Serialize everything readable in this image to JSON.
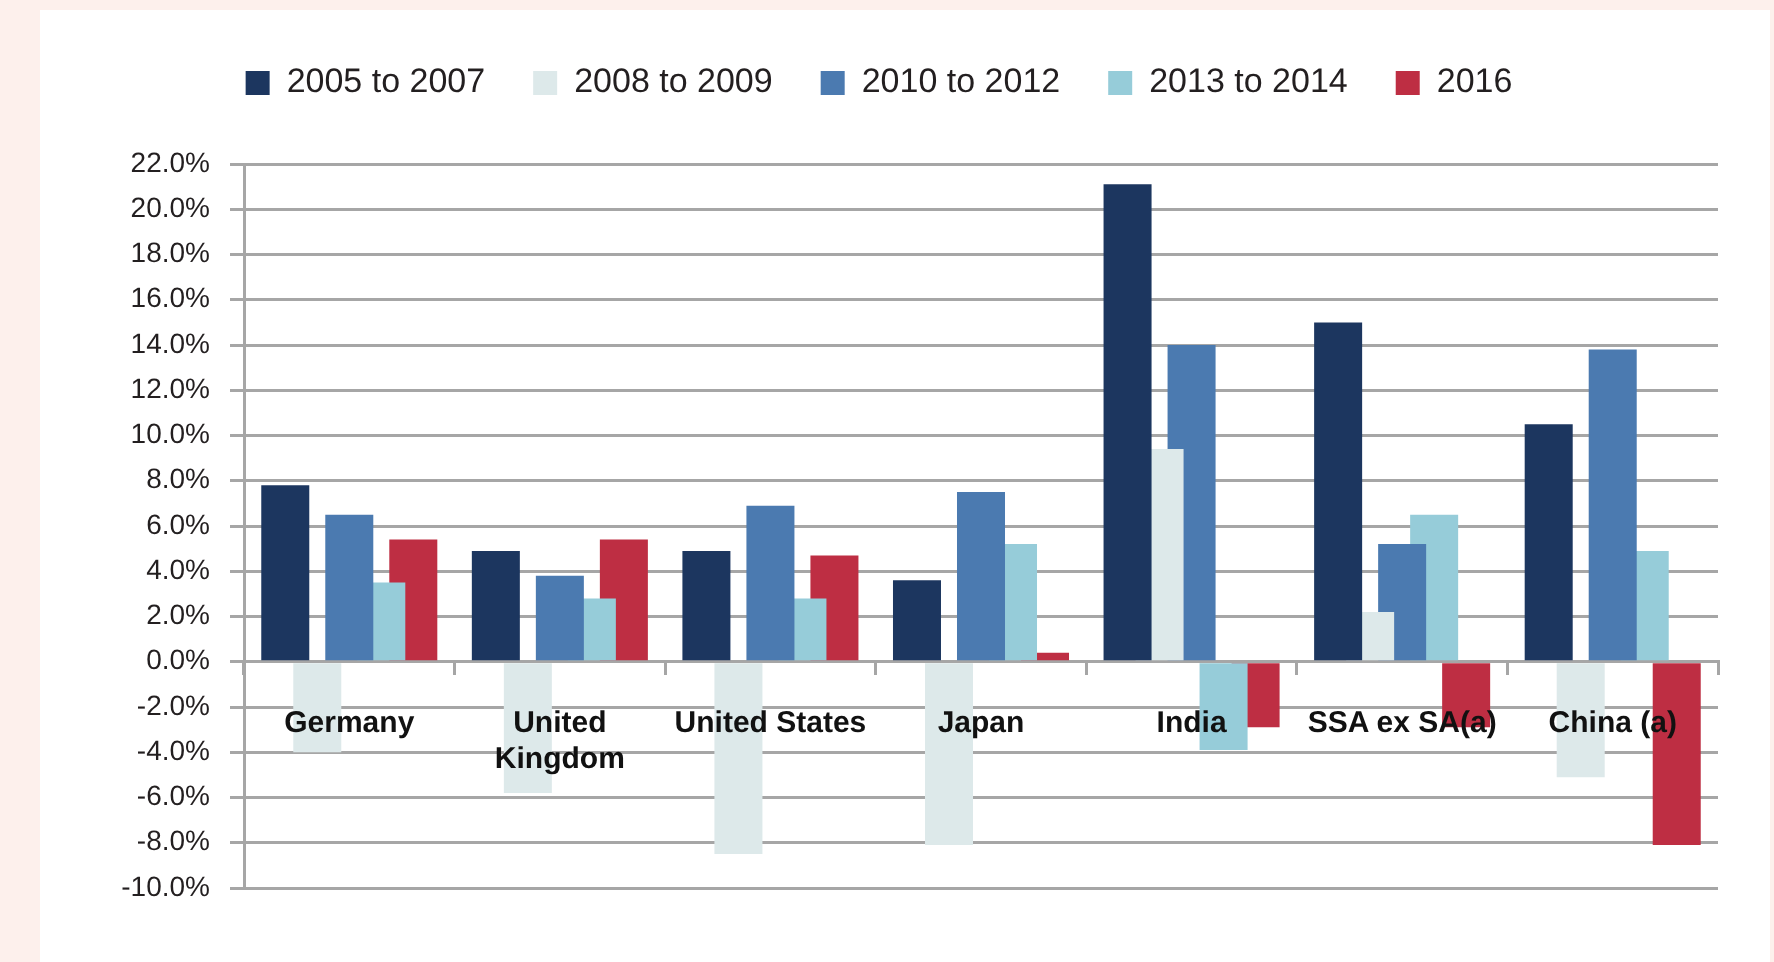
{
  "chart_data": {
    "type": "bar",
    "categories": [
      "Germany",
      "United Kingdom",
      "United States",
      "Japan",
      "India",
      "SSA ex SA(a)",
      "China (a)"
    ],
    "series": [
      {
        "name": "2005 to 2007",
        "color": "#1c365f",
        "values": [
          7.8,
          4.9,
          4.9,
          3.6,
          21.1,
          15.0,
          10.5
        ]
      },
      {
        "name": "2008 to 2009",
        "color": "#dde9ea",
        "values": [
          -4.0,
          -5.8,
          -8.5,
          -8.1,
          9.4,
          2.2,
          -5.1
        ]
      },
      {
        "name": "2010 to 2012",
        "color": "#4b7ab0",
        "values": [
          6.5,
          3.8,
          6.9,
          7.5,
          14.0,
          5.2,
          13.8
        ]
      },
      {
        "name": "2013 to 2014",
        "color": "#96ccd9",
        "values": [
          3.5,
          2.8,
          2.8,
          5.2,
          -3.9,
          6.5,
          4.9
        ]
      },
      {
        "name": "2016",
        "color": "#be2e43",
        "values": [
          5.4,
          5.4,
          4.7,
          0.4,
          -2.9,
          -2.9,
          -8.1
        ]
      }
    ],
    "ylim": [
      -10,
      22
    ],
    "yticks": [
      {
        "value": -10,
        "label": "-10.0%"
      },
      {
        "value": -8,
        "label": "-8.0%"
      },
      {
        "value": -6,
        "label": "-6.0%"
      },
      {
        "value": -4,
        "label": "-4.0%"
      },
      {
        "value": -2,
        "label": "-2.0%"
      },
      {
        "value": 0,
        "label": "0.0%"
      },
      {
        "value": 2,
        "label": "2.0%"
      },
      {
        "value": 4,
        "label": "4.0%"
      },
      {
        "value": 6,
        "label": "6.0%"
      },
      {
        "value": 8,
        "label": "8.0%"
      },
      {
        "value": 10,
        "label": "10.0%"
      },
      {
        "value": 12,
        "label": "12.0%"
      },
      {
        "value": 14,
        "label": "14.0%"
      },
      {
        "value": 16,
        "label": "16.0%"
      },
      {
        "value": 18,
        "label": "18.0%"
      },
      {
        "value": 20,
        "label": "20.0%"
      },
      {
        "value": 22,
        "label": "22.0%"
      }
    ],
    "grid": "y",
    "legend": "top"
  }
}
